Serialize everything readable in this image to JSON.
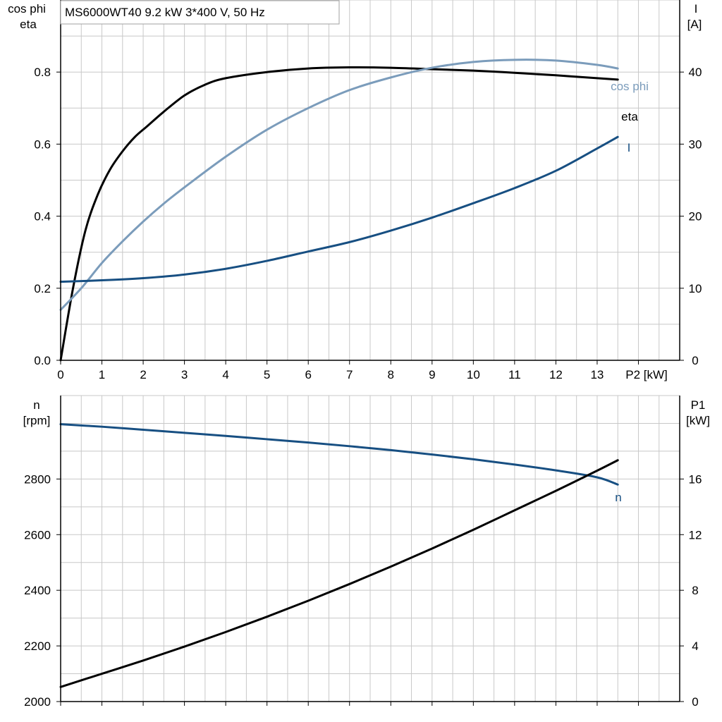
{
  "motor": {
    "label": "MS6000WT40   9.2 kW   3*400 V, 50 Hz"
  },
  "colors": {
    "eta": "#000000",
    "cos_phi": "#7b9cbb",
    "current": "#174f82",
    "speed": "#174f82",
    "p1": "#000000",
    "grid": "#c8c8c8"
  },
  "chart_data": [
    {
      "type": "line",
      "xlabel": "P2 [kW]",
      "x_ticks": [
        "0",
        "1",
        "2",
        "3",
        "4",
        "5",
        "6",
        "7",
        "8",
        "9",
        "10",
        "11",
        "12",
        "13"
      ],
      "xlim": [
        0,
        15
      ],
      "left_axis": {
        "title_line1": "cos phi",
        "title_line2": "eta",
        "ylim": [
          0,
          1.0
        ],
        "ticks": [
          "0.0",
          "0.2",
          "0.4",
          "0.6",
          "0.8"
        ]
      },
      "right_axis": {
        "title_line1": "I",
        "title_line2": "[A]",
        "ylim": [
          0,
          50
        ],
        "ticks": [
          "0",
          "10",
          "20",
          "30",
          "40"
        ]
      },
      "grid": true,
      "series": [
        {
          "name": "eta",
          "axis": "left",
          "color": "#000000",
          "x": [
            0,
            0.3,
            0.6,
            0.9,
            1.2,
            1.5,
            1.8,
            2.1,
            2.5,
            3,
            3.5,
            4,
            5,
            6,
            7,
            8,
            9,
            10,
            11,
            12,
            13,
            13.5
          ],
          "y": [
            0,
            0.2,
            0.36,
            0.46,
            0.53,
            0.58,
            0.62,
            0.65,
            0.69,
            0.735,
            0.765,
            0.783,
            0.8,
            0.81,
            0.813,
            0.812,
            0.808,
            0.804,
            0.798,
            0.791,
            0.783,
            0.779
          ]
        },
        {
          "name": "cos phi",
          "axis": "left",
          "color": "#7b9cbb",
          "x": [
            0,
            0.5,
            1,
            1.5,
            2,
            2.5,
            3,
            4,
            5,
            6,
            7,
            8,
            9,
            10,
            11,
            12,
            13,
            13.5
          ],
          "y": [
            0.14,
            0.2,
            0.27,
            0.33,
            0.385,
            0.435,
            0.48,
            0.565,
            0.64,
            0.7,
            0.75,
            0.785,
            0.812,
            0.828,
            0.834,
            0.832,
            0.82,
            0.81
          ]
        },
        {
          "name": "I",
          "axis": "right",
          "color": "#174f82",
          "x": [
            0,
            1,
            2,
            3,
            4,
            5,
            6,
            7,
            8,
            9,
            10,
            11,
            12,
            13,
            13.5
          ],
          "y": [
            10.9,
            11.1,
            11.4,
            11.9,
            12.7,
            13.8,
            15.1,
            16.4,
            18.0,
            19.8,
            21.8,
            23.9,
            26.3,
            29.4,
            31.0
          ]
        }
      ]
    },
    {
      "type": "line",
      "xlim": [
        0,
        15
      ],
      "left_axis": {
        "title_line1": "n",
        "title_line2": "[rpm]",
        "ylim": [
          2000,
          3100
        ],
        "ticks": [
          "2000",
          "2200",
          "2400",
          "2600",
          "2800"
        ]
      },
      "right_axis": {
        "title_line1": "P1",
        "title_line2": "[kW]",
        "ylim": [
          0,
          22
        ],
        "ticks": [
          "0",
          "4",
          "8",
          "12",
          "16"
        ]
      },
      "grid": true,
      "series": [
        {
          "name": "n",
          "axis": "left",
          "color": "#174f82",
          "x": [
            0,
            1,
            2,
            3,
            4,
            5,
            6,
            7,
            8,
            9,
            10,
            11,
            12,
            13,
            13.5
          ],
          "y": [
            2997,
            2988,
            2977,
            2966,
            2955,
            2943,
            2931,
            2918,
            2904,
            2888,
            2871,
            2852,
            2831,
            2806,
            2780
          ]
        },
        {
          "name": "P1",
          "axis": "right",
          "color": "#000000",
          "x": [
            0,
            1,
            2,
            3,
            4,
            5,
            6,
            7,
            8,
            9,
            10,
            11,
            12,
            13,
            13.5
          ],
          "y": [
            1.05,
            2.0,
            2.95,
            3.95,
            5.0,
            6.1,
            7.25,
            8.45,
            9.7,
            11.0,
            12.35,
            13.75,
            15.15,
            16.6,
            17.35
          ]
        }
      ]
    }
  ]
}
